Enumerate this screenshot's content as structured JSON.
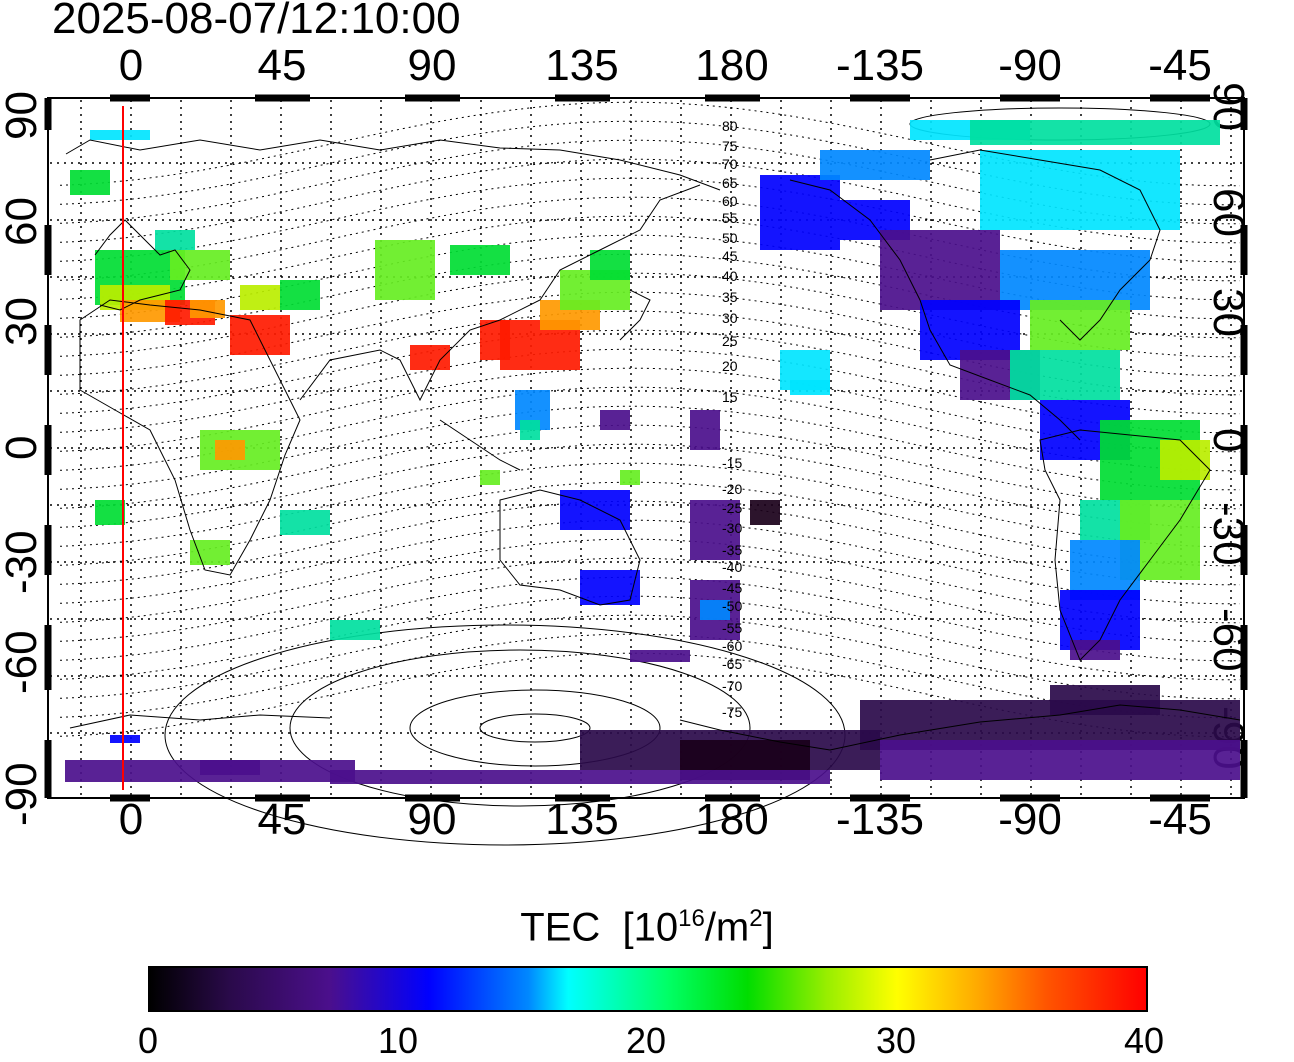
{
  "header": {
    "timestamp": "2025-08-07/12:10:00"
  },
  "map": {
    "projection": "equirectangular",
    "center_longitude": 135,
    "top_longitude_ticks": [
      "0",
      "45",
      "90",
      "135",
      "180",
      "-135",
      "-90",
      "-45"
    ],
    "bottom_longitude_ticks": [
      "0",
      "45",
      "90",
      "135",
      "180",
      "-135",
      "-90",
      "-45"
    ],
    "left_latitude_ticks": [
      "90",
      "60",
      "30",
      "0",
      "-30",
      "-60",
      "-90"
    ],
    "right_latitude_ticks": [
      "90",
      "60",
      "30",
      "0",
      "-30",
      "-60",
      "-90"
    ],
    "grid": "dotted",
    "marker_line": {
      "longitude": -2,
      "color": "#ff0000"
    },
    "magnetic_latitude_labels": [
      "80",
      "75",
      "70",
      "65",
      "60",
      "55",
      "50",
      "45",
      "40",
      "35",
      "30",
      "25",
      "20",
      "15",
      "-15",
      "-20",
      "-25",
      "-30",
      "-35",
      "-40",
      "-45",
      "-50",
      "-55",
      "-60",
      "-65",
      "-70",
      "-75"
    ]
  },
  "colorbar": {
    "title": "TEC",
    "unit_prefix": "[10",
    "unit_exp": "16",
    "unit_mid": "/m",
    "unit_exp2": "2",
    "unit_suffix": "]",
    "min": 0,
    "max": 40,
    "tick_labels": [
      "0",
      "10",
      "20",
      "30",
      "40"
    ],
    "colors": [
      "#000000",
      "#4b0f8c",
      "#0000ff",
      "#00ffff",
      "#00ff00",
      "#ffff00",
      "#ff0000"
    ]
  }
}
